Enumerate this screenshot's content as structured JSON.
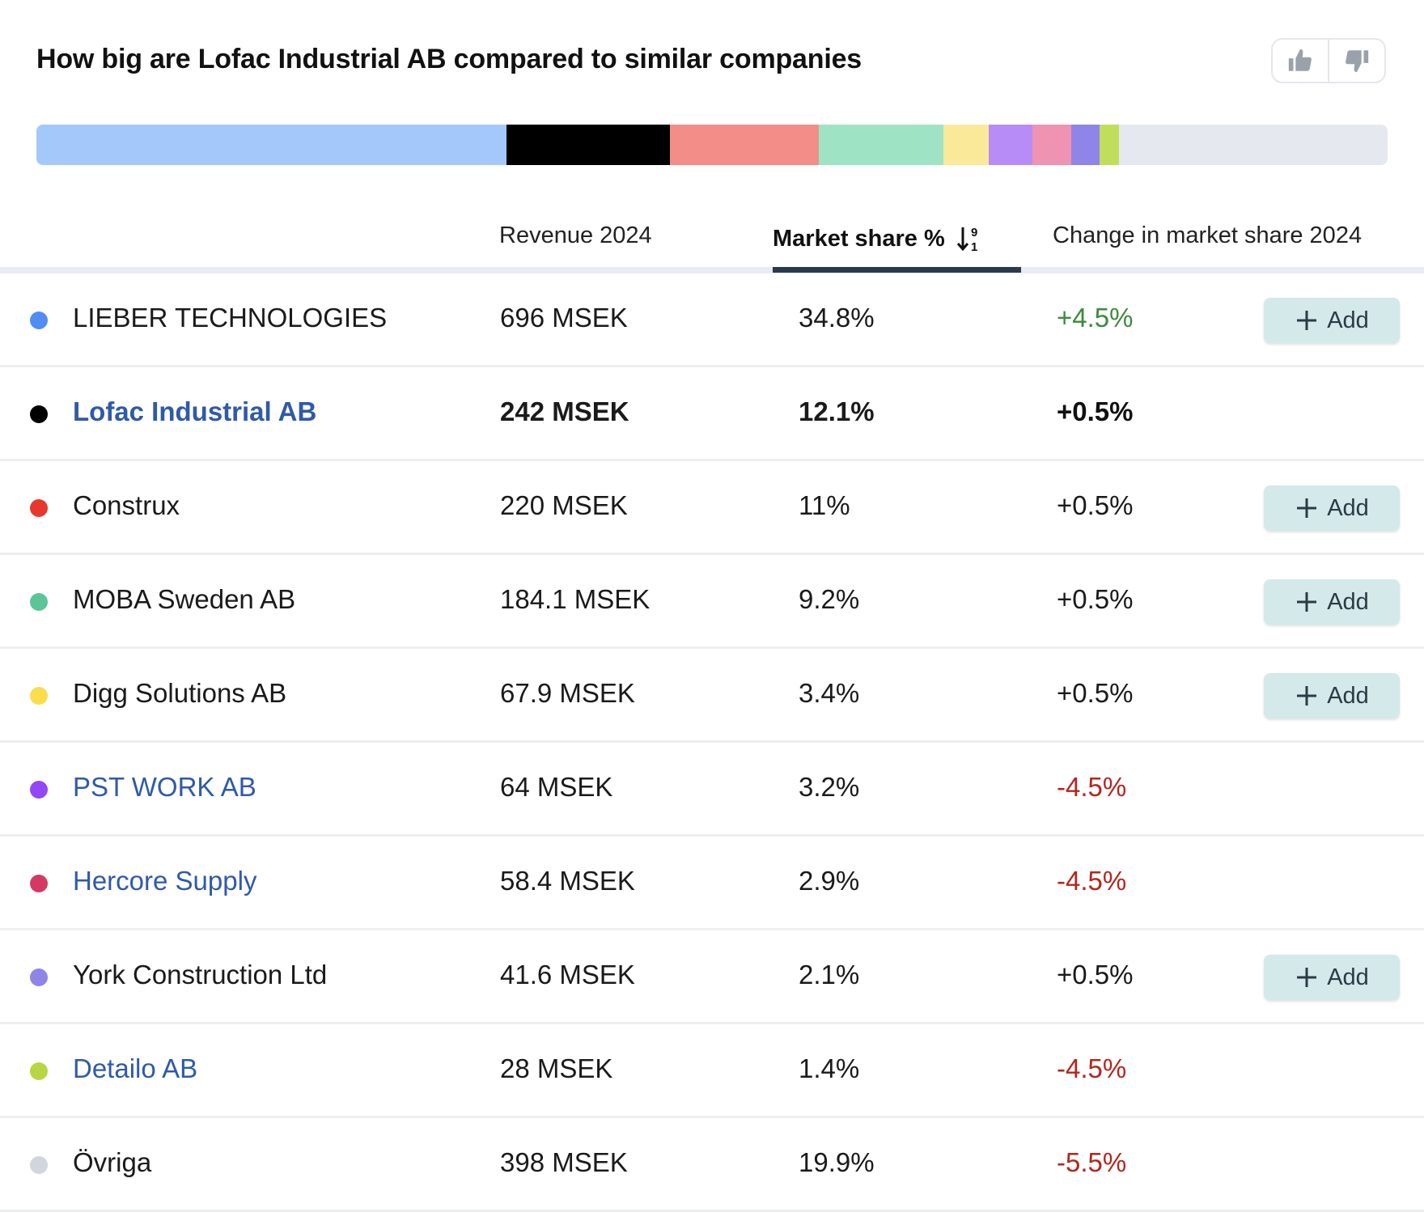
{
  "title": "How big are Lofac Industrial AB compared to similar companies",
  "feedback": {
    "like_icon": "thumbs-up-icon",
    "dislike_icon": "thumbs-down-icon"
  },
  "columns": {
    "revenue": "Revenue 2024",
    "share": "Market share %",
    "change": "Change in market share 2024"
  },
  "sort": {
    "icon": "sort-descending-9-1-icon",
    "active_column": "share"
  },
  "add_label": "Add",
  "share_bar_remainder_color": "#e5e8ef",
  "rows": [
    {
      "name": "LIEBER TECHNOLOGIES",
      "revenue": "696 MSEK",
      "share": "34.8%",
      "share_value": 34.8,
      "change": "+4.5%",
      "change_tone": "pos",
      "dot": "#4f8df5",
      "bar": "#a4c8fa",
      "link": false,
      "bold": false,
      "add": true
    },
    {
      "name": "Lofac Industrial AB",
      "revenue": "242 MSEK",
      "share": "12.1%",
      "share_value": 12.1,
      "change": "+0.5%",
      "change_tone": "neutral",
      "dot": "#000000",
      "bar": "#000000",
      "link": true,
      "bold": true,
      "add": false
    },
    {
      "name": "Construx",
      "revenue": "220 MSEK",
      "share": "11%",
      "share_value": 11,
      "change": "+0.5%",
      "change_tone": "neutral",
      "dot": "#e8382b",
      "bar": "#f28d88",
      "link": false,
      "bold": false,
      "add": true
    },
    {
      "name": "MOBA Sweden AB",
      "revenue": "184.1 MSEK",
      "share": "9.2%",
      "share_value": 9.2,
      "change": "+0.5%",
      "change_tone": "neutral",
      "dot": "#5cc497",
      "bar": "#9fe3c5",
      "link": false,
      "bold": false,
      "add": true
    },
    {
      "name": "Digg Solutions AB",
      "revenue": "67.9 MSEK",
      "share": "3.4%",
      "share_value": 3.4,
      "change": "+0.5%",
      "change_tone": "neutral",
      "dot": "#fbdc4d",
      "bar": "#fbe99a",
      "link": false,
      "bold": false,
      "add": true
    },
    {
      "name": "PST WORK AB",
      "revenue": "64 MSEK",
      "share": "3.2%",
      "share_value": 3.2,
      "change": "-4.5%",
      "change_tone": "neg",
      "dot": "#9347f5",
      "bar": "#b88cf6",
      "link": true,
      "bold": false,
      "add": false
    },
    {
      "name": "Hercore Supply",
      "revenue": "58.4 MSEK",
      "share": "2.9%",
      "share_value": 2.9,
      "change": "-4.5%",
      "change_tone": "neg",
      "dot": "#d33a63",
      "bar": "#ee93b2",
      "link": true,
      "bold": false,
      "add": false
    },
    {
      "name": "York Construction Ltd",
      "revenue": "41.6 MSEK",
      "share": "2.1%",
      "share_value": 2.1,
      "change": "+0.5%",
      "change_tone": "neutral",
      "dot": "#8f85e8",
      "bar": "#8f85e8",
      "link": false,
      "bold": false,
      "add": true
    },
    {
      "name": "Detailo AB",
      "revenue": "28 MSEK",
      "share": "1.4%",
      "share_value": 1.4,
      "change": "-4.5%",
      "change_tone": "neg",
      "dot": "#b8d642",
      "bar": "#c1dd5c",
      "link": true,
      "bold": false,
      "add": false
    },
    {
      "name": "Övriga",
      "revenue": "398 MSEK",
      "share": "19.9%",
      "share_value": 19.9,
      "change": "-5.5%",
      "change_tone": "neg",
      "dot": "#d0d5de",
      "bar": "#e5e8ef",
      "link": false,
      "bold": false,
      "add": false
    }
  ]
}
